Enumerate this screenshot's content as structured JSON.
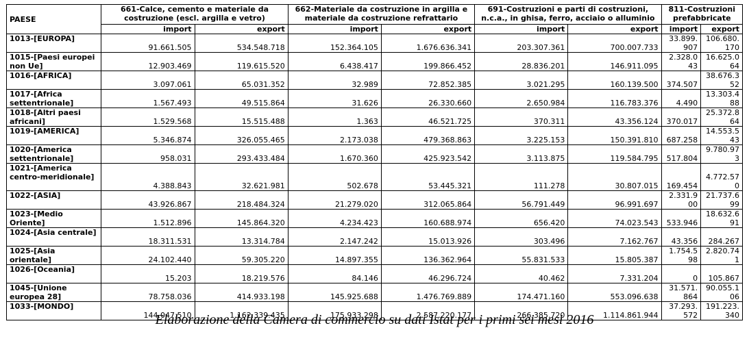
{
  "header": {
    "paese_label": "PAESE",
    "groups": [
      "661-Calce, cemento e materiale da costruzione (escl. argilla e vetro)",
      "662-Materiale da costruzione in argilla e materiale da costruzione refrattario",
      "691-Costruzioni e parti di costruzioni, n.c.a., in ghisa, ferro, acciaio o alluminio",
      "811-Costruzioni prefabbricate"
    ],
    "import_label": "import",
    "export_label": "export"
  },
  "rows": [
    {
      "paese": "1013-[EUROPA]",
      "v": [
        "91.661.505",
        "534.548.718",
        "152.364.105",
        "1.676.636.341",
        "203.307.361",
        "700.007.733",
        "33.899.907",
        "106.680.170"
      ]
    },
    {
      "paese": "1015-[Paesi europei non Ue]",
      "v": [
        "12.903.469",
        "119.615.520",
        "6.438.417",
        "199.866.452",
        "28.836.201",
        "146.911.095",
        "2.328.043",
        "16.625.064"
      ]
    },
    {
      "paese": "1016-[AFRICA]",
      "v": [
        "3.097.061",
        "65.031.352",
        "32.989",
        "72.852.385",
        "3.021.295",
        "160.139.500",
        "374.507",
        "38.676.352"
      ]
    },
    {
      "paese": "1017-[Africa settentrionale]",
      "v": [
        "1.567.493",
        "49.515.864",
        "31.626",
        "26.330.660",
        "2.650.984",
        "116.783.376",
        "4.490",
        "13.303.488"
      ]
    },
    {
      "paese": "1018-[Altri paesi africani]",
      "v": [
        "1.529.568",
        "15.515.488",
        "1.363",
        "46.521.725",
        "370.311",
        "43.356.124",
        "370.017",
        "25.372.864"
      ]
    },
    {
      "paese": "1019-[AMERICA]",
      "v": [
        "5.346.874",
        "326.055.465",
        "2.173.038",
        "479.368.863",
        "3.225.153",
        "150.391.810",
        "687.258",
        "14.553.543"
      ]
    },
    {
      "paese": "1020-[America settentrionale]",
      "v": [
        "958.031",
        "293.433.484",
        "1.670.360",
        "425.923.542",
        "3.113.875",
        "119.584.795",
        "517.804",
        "9.780.973"
      ]
    },
    {
      "paese": "1021-[America centro-meridionale]",
      "v": [
        "4.388.843",
        "32.621.981",
        "502.678",
        "53.445.321",
        "111.278",
        "30.807.015",
        "169.454",
        "4.772.570"
      ]
    },
    {
      "paese": "1022-[ASIA]",
      "v": [
        "43.926.867",
        "218.484.324",
        "21.279.020",
        "312.065.864",
        "56.791.449",
        "96.991.697",
        "2.331.900",
        "21.737.699"
      ]
    },
    {
      "paese": "1023-[Medio Oriente]",
      "v": [
        "1.512.896",
        "145.864.320",
        "4.234.423",
        "160.688.974",
        "656.420",
        "74.023.543",
        "533.946",
        "18.632.691"
      ]
    },
    {
      "paese": "1024-[Asia centrale]",
      "v": [
        "18.311.531",
        "13.314.784",
        "2.147.242",
        "15.013.926",
        "303.496",
        "7.162.767",
        "43.356",
        "284.267"
      ]
    },
    {
      "paese": "1025-[Asia orientale]",
      "v": [
        "24.102.440",
        "59.305.220",
        "14.897.355",
        "136.362.964",
        "55.831.533",
        "15.805.387",
        "1.754.598",
        "2.820.741"
      ]
    },
    {
      "paese": "1026-[Oceania]",
      "v": [
        "15.203",
        "18.219.576",
        "84.146",
        "46.296.724",
        "40.462",
        "7.331.204",
        "0",
        "105.867"
      ]
    },
    {
      "paese": "1045-[Unione europea 28]",
      "v": [
        "78.758.036",
        "414.933.198",
        "145.925.688",
        "1.476.769.889",
        "174.471.160",
        "553.096.638",
        "31.571.864",
        "90.055.106"
      ]
    },
    {
      "paese": "1033-[MONDO]",
      "v": [
        "144.047.510",
        "1.162.339.435",
        "175.933.298",
        "2.587.220.177",
        "266.385.720",
        "1.114.861.944",
        "37.293.572",
        "191.223.340"
      ]
    }
  ],
  "caption": "Elaborazione della Camera di commercio su dati Istat per i primi sei mesi 2016"
}
